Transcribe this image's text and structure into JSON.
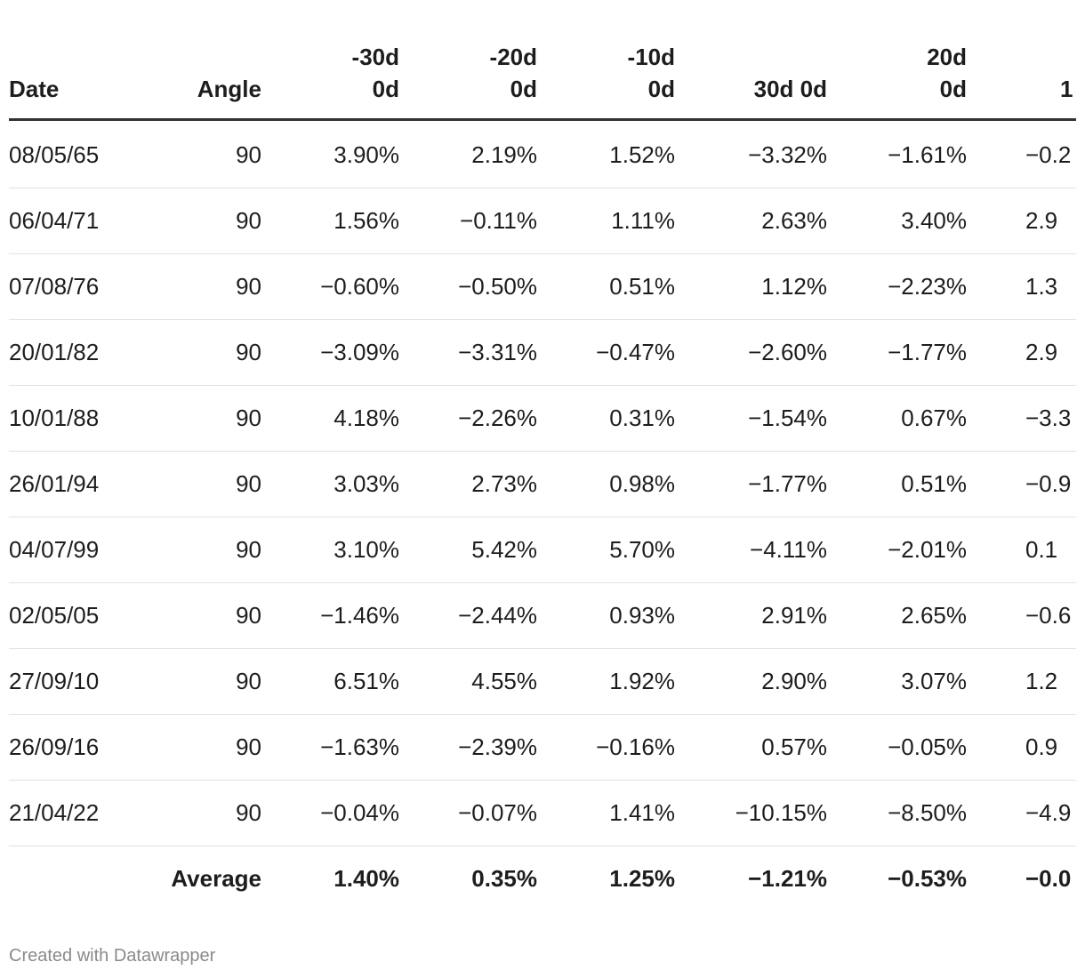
{
  "table": {
    "headers": [
      "Date",
      "Angle",
      "-30d 0d",
      "-20d 0d",
      "-10d 0d",
      "30d 0d",
      "20d 0d",
      "1"
    ],
    "rows": [
      [
        "08/05/65",
        "90",
        "3.90%",
        "2.19%",
        "1.52%",
        "−3.32%",
        "−1.61%",
        "−0.2"
      ],
      [
        "06/04/71",
        "90",
        "1.56%",
        "−0.11%",
        "1.11%",
        "2.63%",
        "3.40%",
        "2.9"
      ],
      [
        "07/08/76",
        "90",
        "−0.60%",
        "−0.50%",
        "0.51%",
        "1.12%",
        "−2.23%",
        "1.3"
      ],
      [
        "20/01/82",
        "90",
        "−3.09%",
        "−3.31%",
        "−0.47%",
        "−2.60%",
        "−1.77%",
        "2.9"
      ],
      [
        "10/01/88",
        "90",
        "4.18%",
        "−2.26%",
        "0.31%",
        "−1.54%",
        "0.67%",
        "−3.3"
      ],
      [
        "26/01/94",
        "90",
        "3.03%",
        "2.73%",
        "0.98%",
        "−1.77%",
        "0.51%",
        "−0.9"
      ],
      [
        "04/07/99",
        "90",
        "3.10%",
        "5.42%",
        "5.70%",
        "−4.11%",
        "−2.01%",
        "0.1"
      ],
      [
        "02/05/05",
        "90",
        "−1.46%",
        "−2.44%",
        "0.93%",
        "2.91%",
        "2.65%",
        "−0.6"
      ],
      [
        "27/09/10",
        "90",
        "6.51%",
        "4.55%",
        "1.92%",
        "2.90%",
        "3.07%",
        "1.2"
      ],
      [
        "26/09/16",
        "90",
        "−1.63%",
        "−2.39%",
        "−0.16%",
        "0.57%",
        "−0.05%",
        "0.9"
      ],
      [
        "21/04/22",
        "90",
        "−0.04%",
        "−0.07%",
        "1.41%",
        "−10.15%",
        "−8.50%",
        "−4.9"
      ]
    ],
    "average": [
      "Average",
      "1.40%",
      "0.35%",
      "1.25%",
      "−1.21%",
      "−0.53%",
      "−0.0"
    ]
  },
  "footer": "Created with Datawrapper"
}
